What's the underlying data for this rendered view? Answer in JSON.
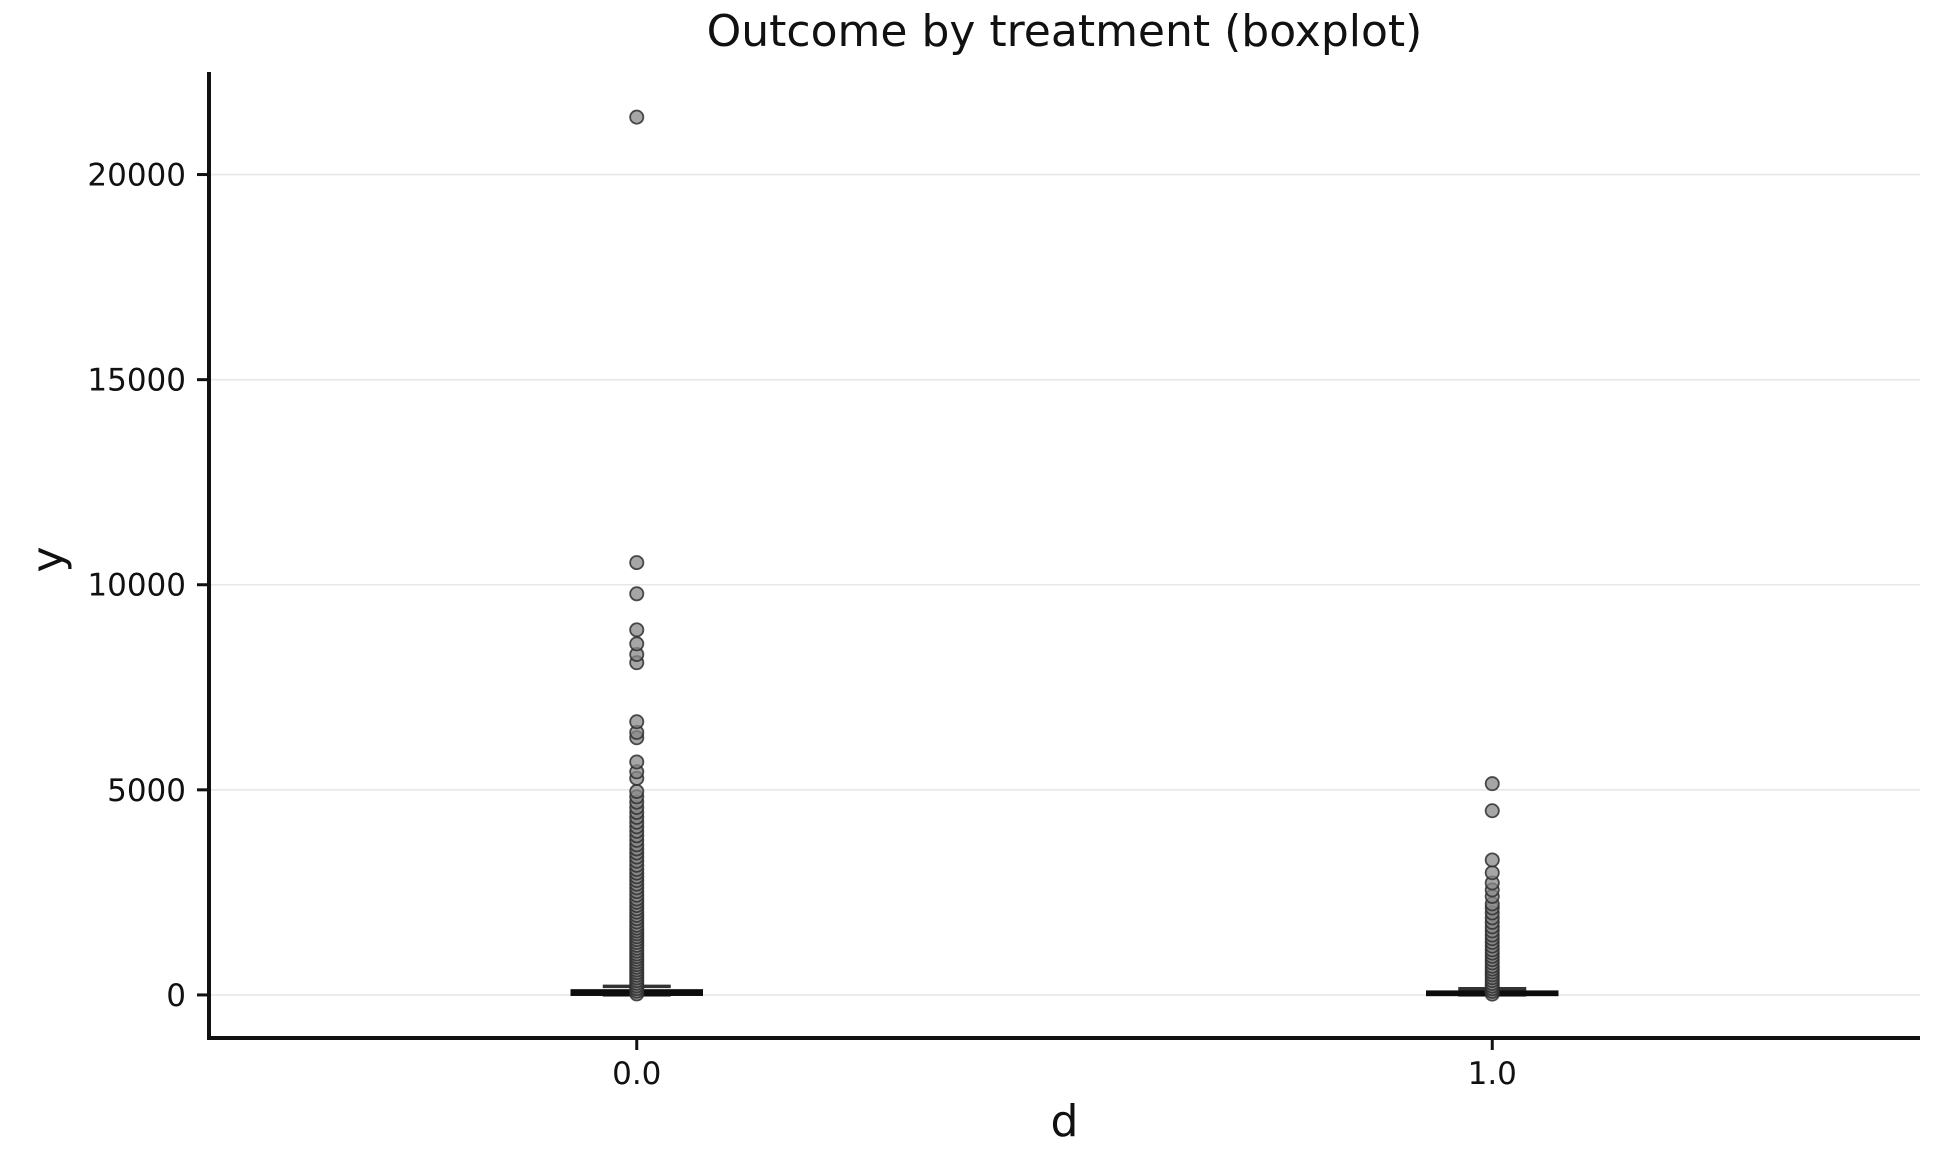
{
  "figure": {
    "background": "#ffffff"
  },
  "chart_data": {
    "type": "boxplot",
    "title": "Outcome by treatment (boxplot)",
    "xlabel": "d",
    "ylabel": "y",
    "ylim": [
      -1050,
      22500
    ],
    "yticks": [
      0,
      5000,
      10000,
      15000,
      20000
    ],
    "ytick_labels": [
      "0",
      "5000",
      "10000",
      "15000",
      "20000"
    ],
    "grid": "horizontal-only",
    "legend": "none",
    "style": {
      "grid_color": "#e7e7e7",
      "spine_color": "#111111",
      "box_color": "#0d0d0d",
      "cap_color": "#333333",
      "marker_fill": "#888888",
      "marker_edge": "#2f2f2f",
      "text_color": "#111111"
    },
    "groups": [
      {
        "label": "0.0",
        "stats": {
          "whisker_low": 0,
          "q1": 5,
          "median": 35,
          "q3": 110,
          "whisker_high": 210
        },
        "outliers": [
          25,
          90,
          155,
          220,
          285,
          350,
          415,
          480,
          545,
          610,
          675,
          740,
          805,
          870,
          935,
          1000,
          1070,
          1140,
          1210,
          1280,
          1350,
          1420,
          1490,
          1560,
          1630,
          1700,
          1780,
          1860,
          1940,
          2020,
          2100,
          2180,
          2260,
          2340,
          2430,
          2520,
          2610,
          2700,
          2790,
          2880,
          2970,
          3060,
          3160,
          3260,
          3360,
          3460,
          3560,
          3660,
          3770,
          3880,
          3990,
          4100,
          4210,
          4330,
          4450,
          4570,
          4700,
          4830,
          4960,
          5280,
          5440,
          5680,
          6270,
          6400,
          6660,
          8100,
          8300,
          8560,
          8900,
          9780,
          10540,
          21400
        ]
      },
      {
        "label": "1.0",
        "stats": {
          "whisker_low": 0,
          "q1": 0,
          "median": 20,
          "q3": 80,
          "whisker_high": 150
        },
        "outliers": [
          20,
          85,
          150,
          215,
          280,
          350,
          420,
          490,
          560,
          630,
          700,
          780,
          860,
          940,
          1020,
          1100,
          1190,
          1280,
          1370,
          1460,
          1560,
          1660,
          1770,
          1880,
          2000,
          2120,
          2220,
          2400,
          2560,
          2730,
          2980,
          3290,
          4490,
          5150
        ]
      }
    ]
  }
}
